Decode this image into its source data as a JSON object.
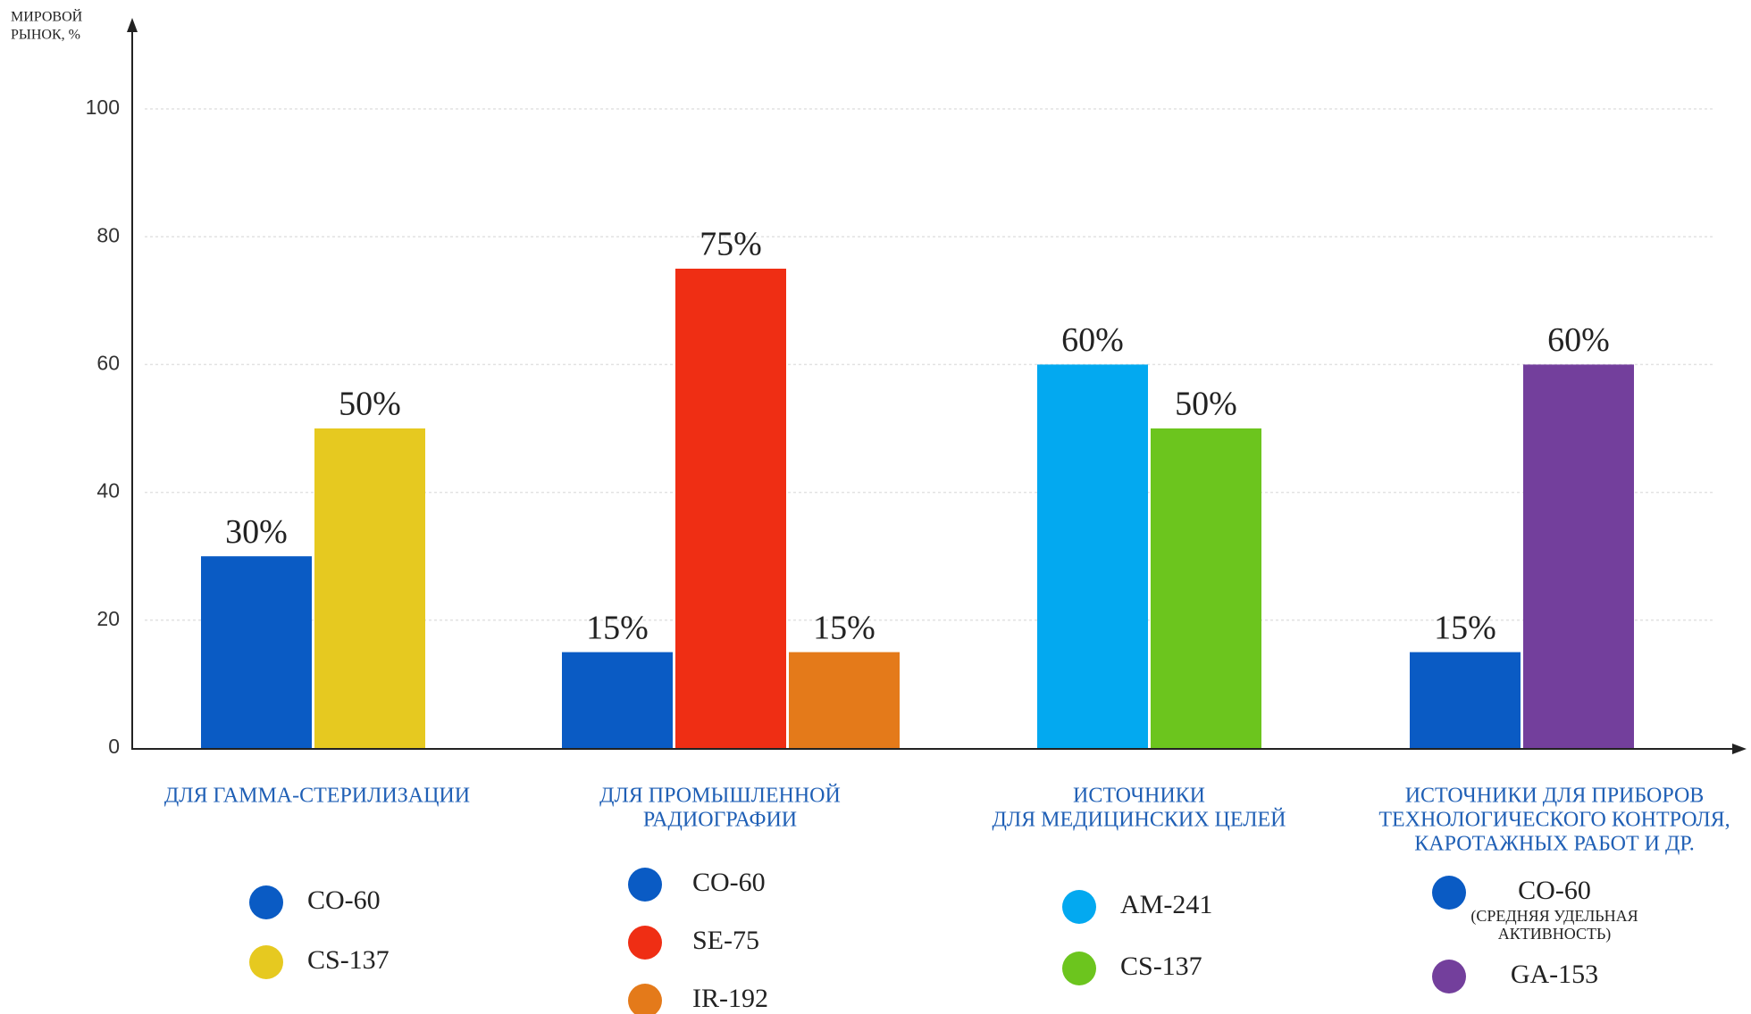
{
  "chart_data": {
    "type": "bar",
    "y_label": [
      "МИРОВОЙ",
      "РЫНОК, %"
    ],
    "ylim": [
      0,
      100
    ],
    "yticks": [
      0,
      20,
      40,
      60,
      80,
      100
    ],
    "grid": true,
    "groups": [
      {
        "label": [
          "ДЛЯ ГАММА-СТЕРИЛИЗАЦИИ"
        ],
        "bars": [
          {
            "name": "CO-60",
            "value": 30,
            "value_label": "30%",
            "color": "#0a5bc4"
          },
          {
            "name": "CS-137",
            "value": 50,
            "value_label": "50%",
            "color": "#e6c920"
          }
        ]
      },
      {
        "label": [
          "ДЛЯ ПРОМЫШЛЕННОЙ",
          "РАДИОГРАФИИ"
        ],
        "bars": [
          {
            "name": "CO-60",
            "value": 15,
            "value_label": "15%",
            "color": "#0a5bc4"
          },
          {
            "name": "SE-75",
            "value": 75,
            "value_label": "75%",
            "color": "#ef2e14"
          },
          {
            "name": "IR-192",
            "value": 15,
            "value_label": "15%",
            "color": "#e47a1a"
          }
        ]
      },
      {
        "label": [
          "ИСТОЧНИКИ",
          "ДЛЯ МЕДИЦИНСКИХ ЦЕЛЕЙ"
        ],
        "bars": [
          {
            "name": "AM-241",
            "value": 60,
            "value_label": "60%",
            "color": "#03a9f0"
          },
          {
            "name": "CS-137",
            "value": 50,
            "value_label": "50%",
            "color": "#6cc51e"
          }
        ]
      },
      {
        "label": [
          "ИСТОЧНИКИ ДЛЯ ПРИБОРОВ",
          "ТЕХНОЛОГИЧЕСКОГО КОНТРОЛЯ,",
          "КАРОТАЖНЫХ РАБОТ И ДР."
        ],
        "bars": [
          {
            "name": "CO-60",
            "value": 15,
            "value_label": "15%",
            "color": "#0a5bc4",
            "note": [
              "(СРЕДНЯЯ УДЕЛЬНАЯ",
              "АКТИВНОСТЬ)"
            ]
          },
          {
            "name": "GA-153",
            "value": 60,
            "value_label": "60%",
            "color": "#733f9c"
          }
        ]
      }
    ]
  }
}
